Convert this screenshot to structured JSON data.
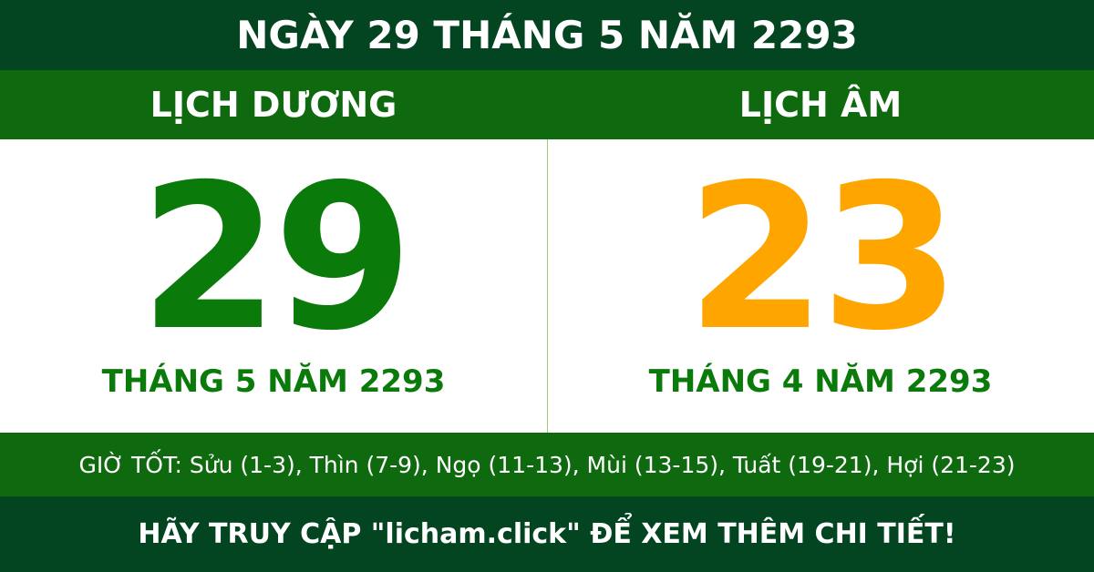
{
  "title": "NGÀY 29 THÁNG 5 NĂM 2293",
  "solar": {
    "label": "LỊCH DƯƠNG",
    "day": "29",
    "month_year": "THÁNG 5 NĂM 2293",
    "color": "#0a7a0a"
  },
  "lunar": {
    "label": "LỊCH ÂM",
    "day": "23",
    "month_year": "THÁNG 4 NĂM 2293",
    "color": "#ffa500"
  },
  "good_hours": "GIỜ TỐT: Sửu (1-3), Thìn (7-9), Ngọ (11-13), Mùi (13-15), Tuất (19-21), Hợi (21-23)",
  "footer": "HÃY TRUY CẬP \"licham.click\" ĐỂ XEM THÊM CHI TIẾT!"
}
